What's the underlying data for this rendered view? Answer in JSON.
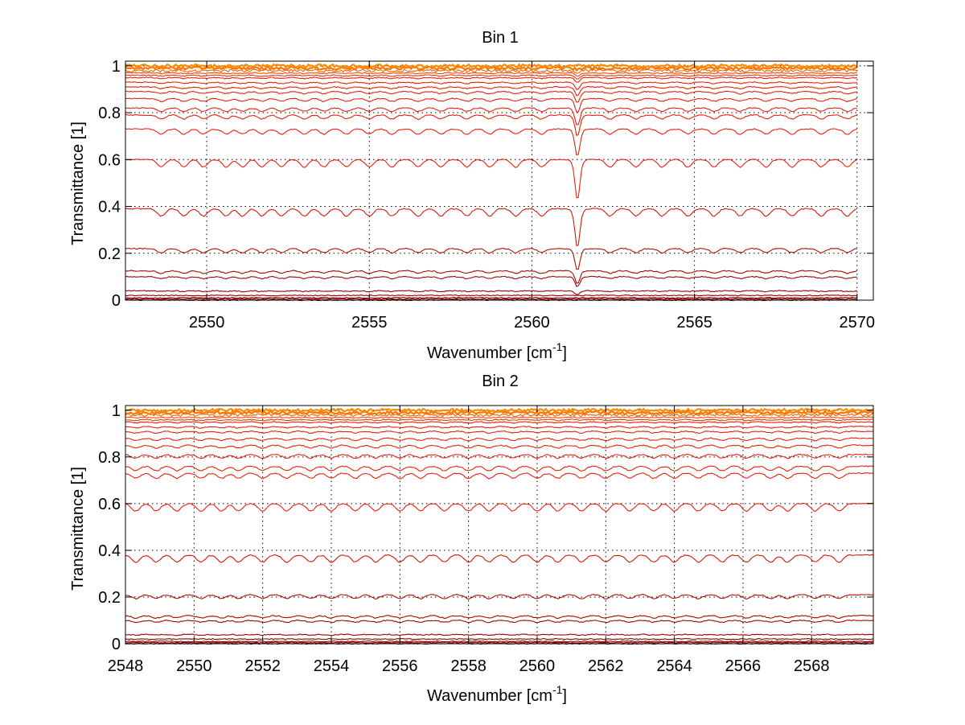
{
  "colors": {
    "background": "#ffffff",
    "axis": "#000000",
    "grid": "#000000",
    "series_low": "#8B0000",
    "series_mid": "#E8200A",
    "series_high": "#FF8C00"
  },
  "chart_data": [
    {
      "type": "line",
      "title": "Bin 1",
      "xlabel_main": "Wavenumber [cm",
      "xlabel_sup": "-1",
      "xlabel_end": "]",
      "ylabel": "Transmittance [1]",
      "xlim": [
        2547.5,
        2570.5
      ],
      "ylim": [
        0,
        1.02
      ],
      "xticks": [
        2550,
        2555,
        2560,
        2565,
        2570
      ],
      "xtick_labels": [
        "2550",
        "2555",
        "2560",
        "2565",
        "2570"
      ],
      "yticks": [
        0,
        0.2,
        0.4,
        0.6,
        0.8,
        1
      ],
      "ytick_labels": [
        "0",
        "0.2",
        "0.4",
        "0.6",
        "0.8",
        "1"
      ],
      "grid": true,
      "x_range": [
        2547.5,
        2570.0
      ],
      "series_levels": [
        0.0,
        0.005,
        0.01,
        0.02,
        0.04,
        0.1,
        0.125,
        0.22,
        0.39,
        0.6,
        0.73,
        0.79,
        0.82,
        0.86,
        0.89,
        0.91,
        0.93,
        0.95,
        0.96,
        0.97,
        0.98,
        0.99,
        1.0
      ],
      "absorption_lines": [
        2548.6,
        2549.3,
        2549.9,
        2550.6,
        2551.1,
        2551.7,
        2552.3,
        2553.0,
        2553.6,
        2554.3,
        2555.0,
        2555.7,
        2556.5,
        2557.2,
        2558.0,
        2558.7,
        2559.5,
        2560.3,
        2561.4,
        2562.4,
        2563.2,
        2564.0,
        2564.8,
        2565.6,
        2566.4,
        2567.2,
        2568.0,
        2568.9,
        2569.7
      ],
      "strong_line": 2561.4
    },
    {
      "type": "line",
      "title": "Bin 2",
      "xlabel_main": "Wavenumber [cm",
      "xlabel_sup": "-1",
      "xlabel_end": "]",
      "ylabel": "Transmittance [1]",
      "xlim": [
        2548,
        2569.8
      ],
      "ylim": [
        0,
        1.02
      ],
      "xticks": [
        2548,
        2550,
        2552,
        2554,
        2556,
        2558,
        2560,
        2562,
        2564,
        2566,
        2568
      ],
      "xtick_labels": [
        "2548",
        "2550",
        "2552",
        "2554",
        "2556",
        "2558",
        "2560",
        "2562",
        "2564",
        "2566",
        "2568"
      ],
      "yticks": [
        0,
        0.2,
        0.4,
        0.6,
        0.8,
        1
      ],
      "ytick_labels": [
        "0",
        "0.2",
        "0.4",
        "0.6",
        "0.8",
        "1"
      ],
      "grid": true,
      "x_range": [
        2548.0,
        2569.8
      ],
      "series_levels": [
        0.0,
        0.005,
        0.01,
        0.02,
        0.04,
        0.1,
        0.12,
        0.21,
        0.38,
        0.6,
        0.73,
        0.76,
        0.81,
        0.85,
        0.88,
        0.91,
        0.93,
        0.95,
        0.96,
        0.97,
        0.98,
        0.99,
        1.0
      ],
      "absorption_lines": [
        2548.3,
        2548.9,
        2549.5,
        2550.2,
        2550.8,
        2551.3,
        2552.0,
        2552.7,
        2553.4,
        2554.0,
        2554.7,
        2555.3,
        2556.0,
        2556.6,
        2557.3,
        2558.0,
        2558.6,
        2559.3,
        2560.0,
        2560.6,
        2561.3,
        2562.0,
        2562.7,
        2563.4,
        2564.0,
        2564.7,
        2565.4,
        2566.1,
        2566.8,
        2567.3,
        2568.1,
        2568.8
      ],
      "strong_line": null
    }
  ]
}
